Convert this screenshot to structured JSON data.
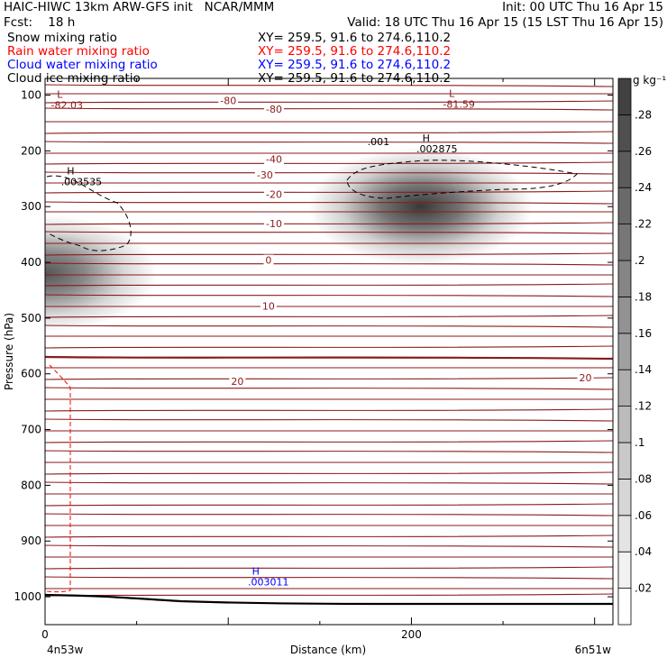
{
  "header": {
    "left1": "HAIC-HIWC 13km ARW-GFS init   NCAR/MMM",
    "left2": "Fcst:    18 h",
    "right1": "Init: 00 UTC Thu 16 Apr 15",
    "right2": "Valid: 18 UTC Thu 16 Apr 15 (15 LST Thu 16 Apr 15)"
  },
  "legend": [
    {
      "name": "Snow mixing ratio",
      "xy": "XY= 259.5, 91.6 to 274.6,110.2",
      "color": "#000000"
    },
    {
      "name": "Rain water mixing ratio",
      "xy": "XY= 259.5, 91.6 to 274.6,110.2",
      "color": "#ff0000"
    },
    {
      "name": "Cloud water mixing ratio",
      "xy": "XY= 259.5, 91.6 to 274.6,110.2",
      "color": "#0000ff"
    },
    {
      "name": "Cloud ice mixing ratio",
      "xy": "XY= 259.5, 91.6 to 274.6,110.2",
      "color": "#000000"
    }
  ],
  "chart_data": {
    "type": "heatmap",
    "xlabel": "Distance (km)",
    "ylabel": "Pressure (hPa)",
    "xlim": [
      0,
      310
    ],
    "ylim": [
      1050,
      70
    ],
    "x_ticks": [
      {
        "v": 0,
        "label": "0"
      },
      {
        "v": 200,
        "label": "200"
      }
    ],
    "x_end_labels": {
      "left": "4n53w",
      "right": "6n51w"
    },
    "y_ticks": [
      100,
      200,
      300,
      400,
      500,
      600,
      700,
      800,
      900,
      1000
    ],
    "colorbar": {
      "unit": "g kg⁻¹",
      "min": 0.0,
      "max": 0.3,
      "labels": [
        ".02",
        ".04",
        ".06",
        ".08",
        ".1",
        ".12",
        ".14",
        ".16",
        ".18",
        ".2",
        ".22",
        ".24",
        ".26",
        ".28"
      ]
    },
    "snow_blobs": [
      {
        "x": 205,
        "p": 300,
        "peak": 0.28
      },
      {
        "x": 0,
        "p": 420,
        "peak": 0.24
      }
    ],
    "temperature_contours": {
      "color": "#8b1a1a",
      "labels": [
        {
          "text": "-80",
          "x": 100,
          "p": 110
        },
        {
          "text": "-80",
          "x": 125,
          "p": 125
        },
        {
          "text": "-40",
          "x": 125,
          "p": 215
        },
        {
          "text": "-30",
          "x": 120,
          "p": 243
        },
        {
          "text": "-20",
          "x": 125,
          "p": 278
        },
        {
          "text": "-10",
          "x": 125,
          "p": 330
        },
        {
          "text": "0",
          "x": 122,
          "p": 396
        },
        {
          "text": "10",
          "x": 122,
          "p": 478
        },
        {
          "text": "20",
          "x": 105,
          "p": 613
        },
        {
          "text": "20",
          "x": 295,
          "p": 607
        }
      ],
      "extrema": [
        {
          "kind": "L",
          "value": "-82.03",
          "x": 8,
          "p": 105
        },
        {
          "kind": "L",
          "value": "-81.59",
          "x": 222,
          "p": 103
        }
      ]
    },
    "ice_contour_labels": [
      {
        "text": ".001",
        "x": 182,
        "p": 183
      },
      {
        "kind": "H",
        "value": ".002875",
        "x": 208,
        "p": 183
      },
      {
        "kind": "H",
        "value": ".003535",
        "x": 14,
        "p": 242
      }
    ],
    "cloud_water_extrema": [
      {
        "kind": "H",
        "value": ".003011",
        "x": 115,
        "p": 960
      }
    ]
  }
}
